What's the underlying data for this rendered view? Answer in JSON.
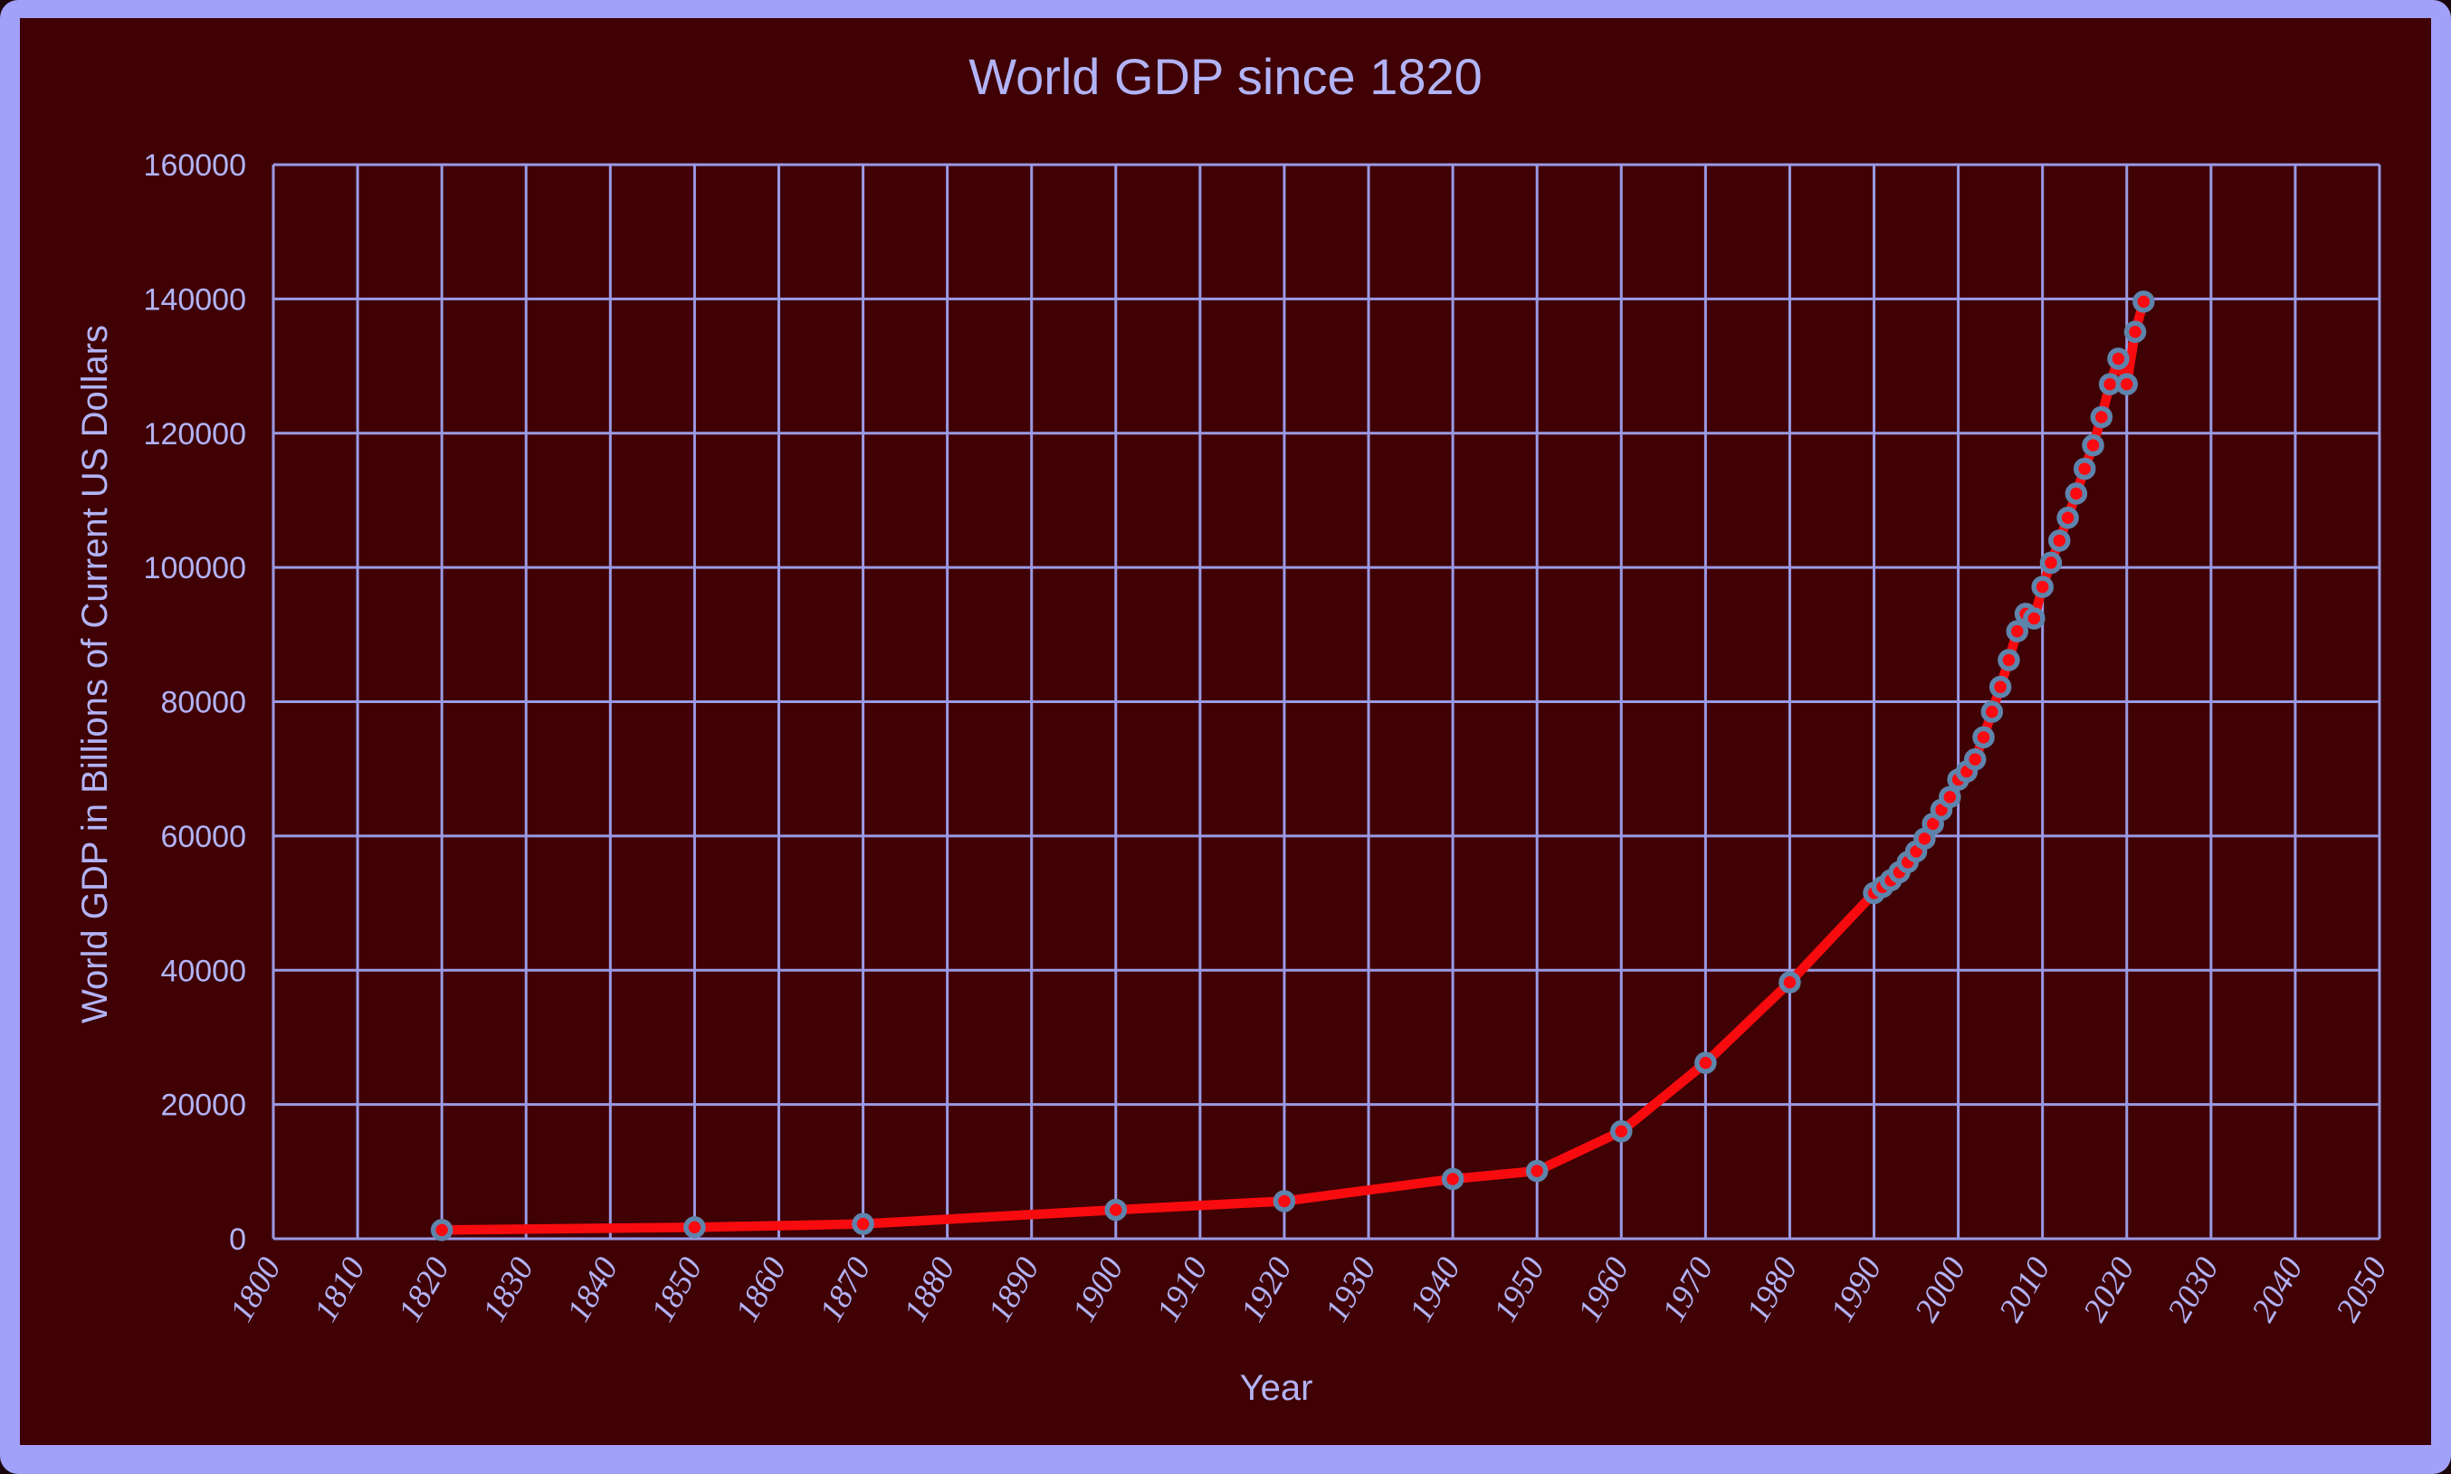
{
  "colors": {
    "frame": "#a1a1fa",
    "chart_bg": "#3f0104",
    "grid": "#9a9ae4",
    "text": "#b2b3f6",
    "line": "#f80b0e",
    "marker_fill": "#fa0a10",
    "marker_stroke": "#5e84ac"
  },
  "chart_data": {
    "type": "line",
    "title": "World GDP since 1820",
    "xlabel": "Year",
    "ylabel": "World GDP in Billions of  Current US Dollars",
    "xlim": [
      1800,
      2050
    ],
    "ylim": [
      0,
      160000
    ],
    "grid": true,
    "legend": "none",
    "marker": "circle",
    "x_ticks": [
      1800,
      1810,
      1820,
      1830,
      1840,
      1850,
      1860,
      1870,
      1880,
      1890,
      1900,
      1910,
      1920,
      1930,
      1940,
      1950,
      1960,
      1970,
      1980,
      1990,
      2000,
      2010,
      2020,
      2030,
      2040,
      2050
    ],
    "y_ticks": [
      0,
      20000,
      40000,
      60000,
      80000,
      100000,
      120000,
      140000,
      160000
    ],
    "series": [
      {
        "name": "World GDP",
        "x": [
          1820,
          1850,
          1870,
          1900,
          1920,
          1940,
          1950,
          1960,
          1970,
          1980,
          1990,
          1991,
          1992,
          1993,
          1994,
          1995,
          1996,
          1997,
          1998,
          1999,
          2000,
          2001,
          2002,
          2003,
          2004,
          2005,
          2006,
          2007,
          2008,
          2009,
          2010,
          2011,
          2012,
          2013,
          2014,
          2015,
          2016,
          2017,
          2018,
          2019,
          2020,
          2021,
          2022
        ],
        "values": [
          1300,
          1700,
          2200,
          4300,
          5600,
          8900,
          10100,
          16000,
          26200,
          38200,
          51500,
          52400,
          53400,
          54600,
          56100,
          57700,
          59600,
          61800,
          63900,
          65800,
          68400,
          69600,
          71400,
          74700,
          78500,
          82200,
          86200,
          90500,
          93100,
          92400,
          97100,
          100700,
          104000,
          107400,
          111000,
          114700,
          118200,
          122400,
          127300,
          131100,
          127300,
          135100,
          139600
        ]
      }
    ]
  }
}
